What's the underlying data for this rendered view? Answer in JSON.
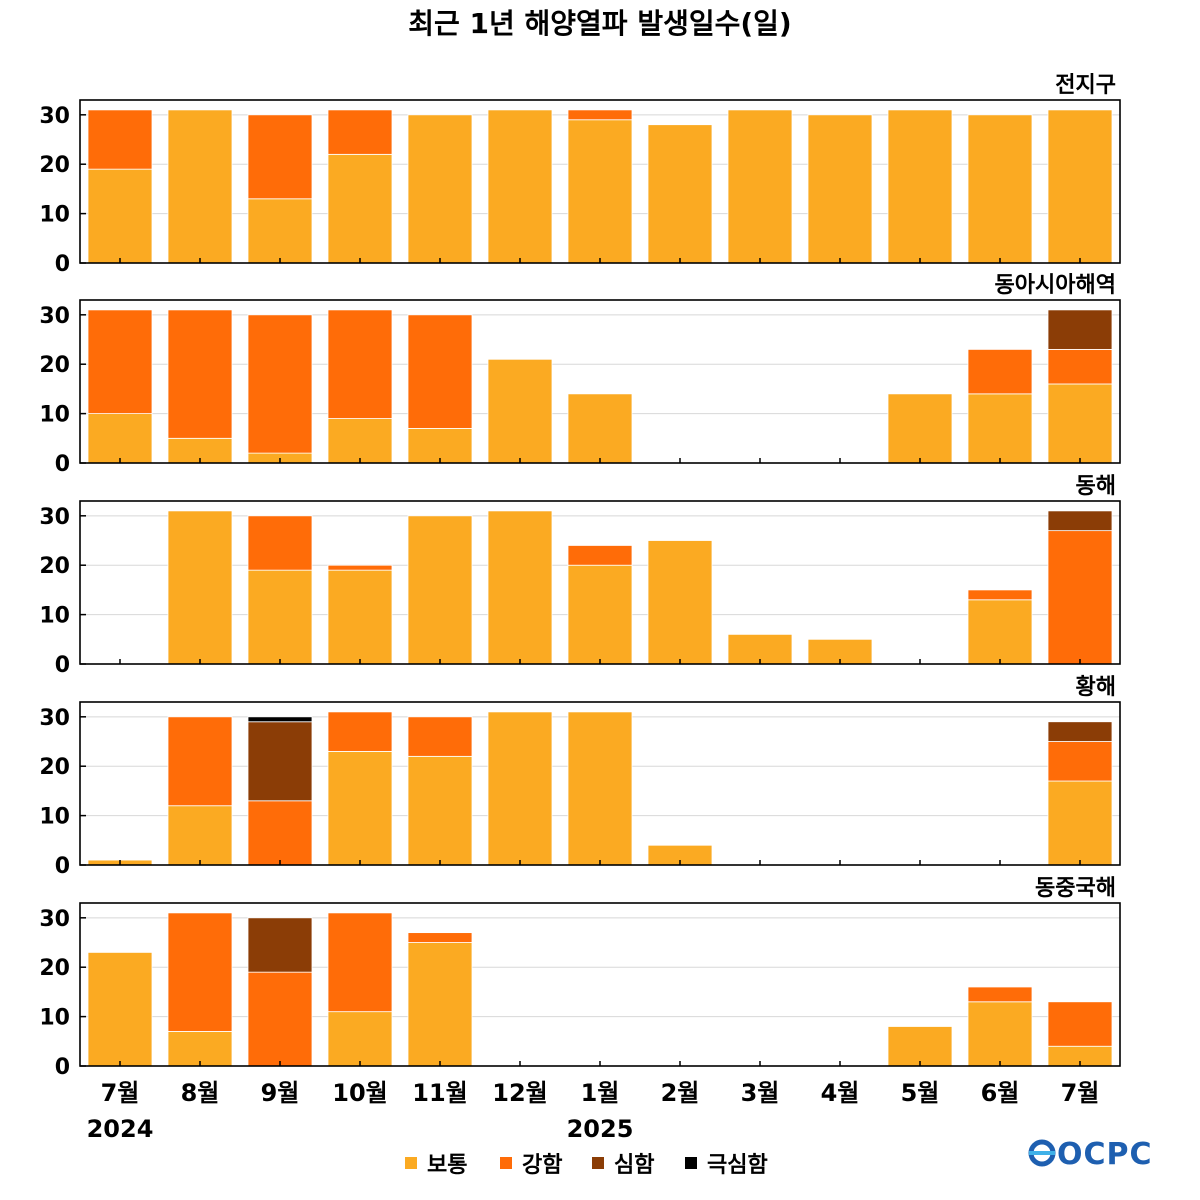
{
  "chart_data": {
    "type": "bar",
    "stacked": true,
    "title": "최근 1년 해양열파 발생일수(일)",
    "categories": [
      "7월",
      "8월",
      "9월",
      "10월",
      "11월",
      "12월",
      "1월",
      "2월",
      "3월",
      "4월",
      "5월",
      "6월",
      "7월"
    ],
    "year_labels": [
      {
        "category_index": 0,
        "text": "2024"
      },
      {
        "category_index": 6,
        "text": "2025"
      }
    ],
    "ylim": [
      0,
      33
    ],
    "yticks": [
      0,
      10,
      20,
      30
    ],
    "grid": true,
    "legend_placement": "bottom",
    "series_names": [
      "보통",
      "강함",
      "심함",
      "극심함"
    ],
    "colors": {
      "보통": "#FBAA22",
      "강함": "#FF6C08",
      "심함": "#8B3D06",
      "극심함": "#000000"
    },
    "panels": [
      {
        "name": "전지구",
        "series": [
          {
            "name": "보통",
            "values": [
              19,
              31,
              13,
              22,
              30,
              31,
              29,
              28,
              31,
              30,
              31,
              30,
              31
            ]
          },
          {
            "name": "강함",
            "values": [
              12,
              0,
              17,
              9,
              0,
              0,
              2,
              0,
              0,
              0,
              0,
              0,
              0
            ]
          },
          {
            "name": "심함",
            "values": [
              0,
              0,
              0,
              0,
              0,
              0,
              0,
              0,
              0,
              0,
              0,
              0,
              0
            ]
          },
          {
            "name": "극심함",
            "values": [
              0,
              0,
              0,
              0,
              0,
              0,
              0,
              0,
              0,
              0,
              0,
              0,
              0
            ]
          }
        ]
      },
      {
        "name": "동아시아해역",
        "series": [
          {
            "name": "보통",
            "values": [
              10,
              5,
              2,
              9,
              7,
              21,
              14,
              0,
              0,
              0,
              14,
              14,
              16
            ]
          },
          {
            "name": "강함",
            "values": [
              21,
              26,
              28,
              22,
              23,
              0,
              0,
              0,
              0,
              0,
              0,
              9,
              7
            ]
          },
          {
            "name": "심함",
            "values": [
              0,
              0,
              0,
              0,
              0,
              0,
              0,
              0,
              0,
              0,
              0,
              0,
              8
            ]
          },
          {
            "name": "극심함",
            "values": [
              0,
              0,
              0,
              0,
              0,
              0,
              0,
              0,
              0,
              0,
              0,
              0,
              0
            ]
          }
        ]
      },
      {
        "name": "동해",
        "series": [
          {
            "name": "보통",
            "values": [
              0,
              31,
              19,
              19,
              30,
              31,
              20,
              25,
              6,
              5,
              0,
              13,
              0
            ]
          },
          {
            "name": "강함",
            "values": [
              0,
              0,
              11,
              1,
              0,
              0,
              4,
              0,
              0,
              0,
              0,
              2,
              27
            ]
          },
          {
            "name": "심함",
            "values": [
              0,
              0,
              0,
              0,
              0,
              0,
              0,
              0,
              0,
              0,
              0,
              0,
              4
            ]
          },
          {
            "name": "극심함",
            "values": [
              0,
              0,
              0,
              0,
              0,
              0,
              0,
              0,
              0,
              0,
              0,
              0,
              0
            ]
          }
        ]
      },
      {
        "name": "황해",
        "series": [
          {
            "name": "보통",
            "values": [
              1,
              12,
              0,
              23,
              22,
              31,
              31,
              4,
              0,
              0,
              0,
              0,
              17
            ]
          },
          {
            "name": "강함",
            "values": [
              0,
              18,
              13,
              8,
              8,
              0,
              0,
              0,
              0,
              0,
              0,
              0,
              8
            ]
          },
          {
            "name": "심함",
            "values": [
              0,
              0,
              16,
              0,
              0,
              0,
              0,
              0,
              0,
              0,
              0,
              0,
              4
            ]
          },
          {
            "name": "극심함",
            "values": [
              0,
              0,
              1,
              0,
              0,
              0,
              0,
              0,
              0,
              0,
              0,
              0,
              0
            ]
          }
        ]
      },
      {
        "name": "동중국해",
        "series": [
          {
            "name": "보통",
            "values": [
              23,
              7,
              0,
              11,
              25,
              0,
              0,
              0,
              0,
              0,
              8,
              13,
              4
            ]
          },
          {
            "name": "강함",
            "values": [
              0,
              24,
              19,
              20,
              2,
              0,
              0,
              0,
              0,
              0,
              0,
              3,
              9
            ]
          },
          {
            "name": "심함",
            "values": [
              0,
              0,
              11,
              0,
              0,
              0,
              0,
              0,
              0,
              0,
              0,
              0,
              0
            ]
          },
          {
            "name": "극심함",
            "values": [
              0,
              0,
              0,
              0,
              0,
              0,
              0,
              0,
              0,
              0,
              0,
              0,
              0
            ]
          }
        ]
      }
    ]
  },
  "logo": {
    "text": "OCPC"
  }
}
